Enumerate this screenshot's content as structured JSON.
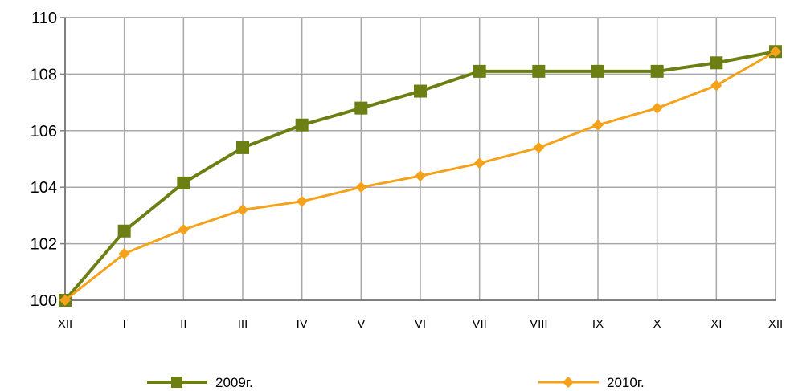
{
  "chart_data": {
    "type": "line",
    "categories": [
      "XII",
      "I",
      "II",
      "III",
      "IV",
      "V",
      "VI",
      "VII",
      "VIII",
      "IX",
      "X",
      "XI",
      "XII"
    ],
    "ylim": [
      100,
      110
    ],
    "yticks": [
      "100",
      "102",
      "104",
      "106",
      "108",
      "110"
    ],
    "grid": true,
    "legend_position": "bottom",
    "series": [
      {
        "name": "2009г.",
        "color": "#6b7f12",
        "marker": "square",
        "values": [
          100.0,
          102.45,
          104.15,
          105.4,
          106.2,
          106.8,
          107.4,
          108.1,
          108.1,
          108.1,
          108.1,
          108.4,
          108.8
        ]
      },
      {
        "name": "2010г.",
        "color": "#f5a21b",
        "marker": "diamond",
        "values": [
          100.0,
          101.65,
          102.5,
          103.2,
          103.5,
          104.0,
          104.4,
          104.85,
          105.4,
          106.2,
          106.8,
          107.6,
          108.8
        ]
      }
    ]
  }
}
